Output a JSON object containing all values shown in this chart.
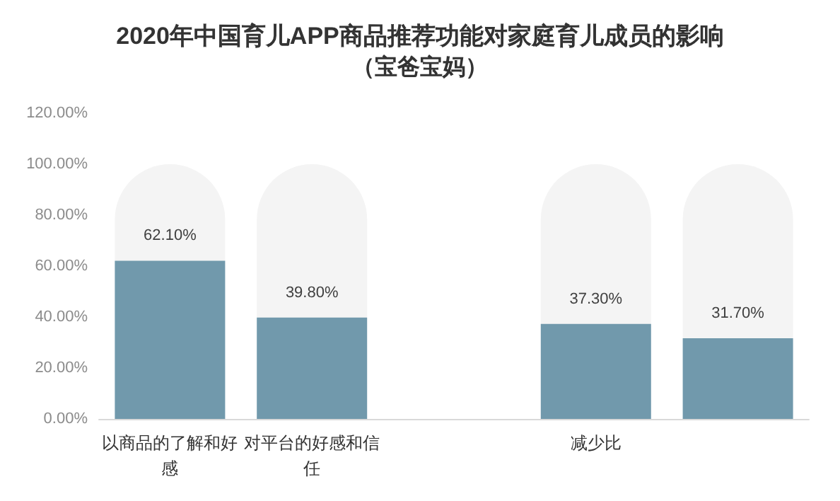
{
  "chart_data": {
    "type": "bar",
    "title": "2020年中国育儿APP商品推荐功能对家庭育儿成员的影响",
    "subtitle": "（宝爸宝妈）",
    "categories": [
      "以商品的了解和好感",
      "对平台的好感和信任",
      null,
      "减少比",
      null
    ],
    "stacked": true,
    "series": [
      {
        "color": "#7199ac",
        "values": [
          62.1,
          39.8,
          null,
          37.3,
          31.7
        ],
        "value_labels": [
          "62.10%",
          "39.80%",
          null,
          "37.30%",
          "31.70%"
        ]
      },
      {
        "color": "#f4f4f4",
        "values": [
          37.9,
          60.2,
          null,
          62.7,
          68.3
        ]
      }
    ],
    "ylim": [
      0,
      120
    ],
    "yticks": [
      {
        "value": 0,
        "label": "0.00%"
      },
      {
        "value": 20,
        "label": "20.00%"
      },
      {
        "value": 40,
        "label": "40.00%"
      },
      {
        "value": 60,
        "label": "60.00%"
      },
      {
        "value": 80,
        "label": "80.00%"
      },
      {
        "value": 100,
        "label": "100.00%"
      },
      {
        "value": 120,
        "label": "120.00%"
      }
    ],
    "grid": false
  }
}
